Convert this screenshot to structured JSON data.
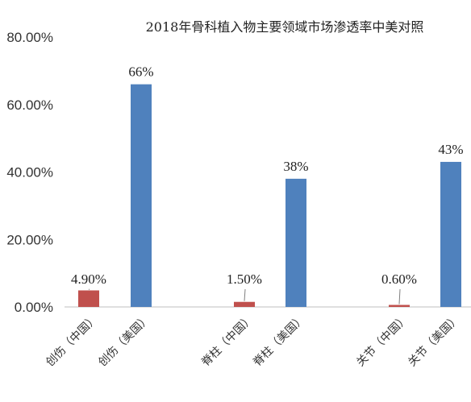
{
  "chart_data": {
    "type": "bar",
    "title": "2018年骨科植入物主要领域市场渗透率中美对照",
    "categories": [
      "创伤（中国）",
      "创伤（美国）",
      "脊柱（中国）",
      "脊柱（美国）",
      "关节（中国）",
      "关节（美国）"
    ],
    "values": [
      4.9,
      66,
      1.5,
      38,
      0.6,
      43
    ],
    "data_labels": [
      "4.90%",
      "66%",
      "1.50%",
      "38%",
      "0.60%",
      "43%"
    ],
    "bar_colors": [
      "#c0504d",
      "#4f81bd",
      "#c0504d",
      "#4f81bd",
      "#c0504d",
      "#4f81bd"
    ],
    "yticks": [
      "0.00%",
      "20.00%",
      "40.00%",
      "60.00%",
      "80.00%"
    ],
    "ylim": [
      0,
      80
    ],
    "xlabel": "",
    "ylabel": "",
    "grid": false,
    "legend": "none"
  }
}
